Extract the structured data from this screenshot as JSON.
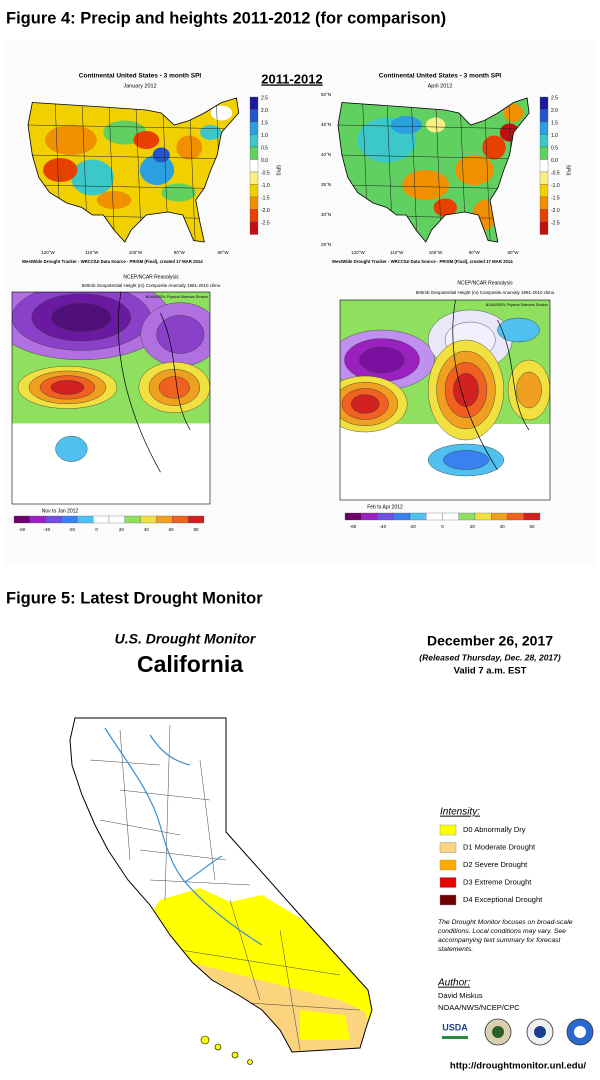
{
  "figure4": {
    "heading": "Figure 4:  Precip and heights 2011-2012 (for comparison)",
    "period_label": "2011-2012",
    "spi_maps": [
      {
        "title": "Continental United States - 3 month SPI",
        "month": "January 2012",
        "lon_labels": [
          "120°W",
          "110°W",
          "100°W",
          "90°W",
          "80°W"
        ],
        "credit": "WestWide Drought Tracker - WRCC/UI  Data Source - PRISM (Final), created 17 MAR 2014"
      },
      {
        "title": "Continental United States - 3 month SPI",
        "month": "April 2012",
        "lat_labels": [
          "50°N",
          "45°N",
          "40°N",
          "35°N",
          "30°N",
          "25°N"
        ],
        "lon_labels": [
          "120°W",
          "110°W",
          "100°W",
          "90°W",
          "80°W"
        ],
        "credit": "WestWide Drought Tracker - WRCC/UI  Data Source - PRISM (Final), created 17 MAR 2014"
      }
    ],
    "spi_scale": {
      "ticks": [
        "2.5",
        "2.0",
        "1.5",
        "1.0",
        "0.5",
        "0.0",
        "-0.5",
        "-1.0",
        "-1.5",
        "-2.0",
        "-2.5"
      ],
      "label": "SPI3"
    },
    "height_maps": [
      {
        "source": "NCEP/NCAR Reanalysis",
        "subtitle": "500mb Geopotential Height (m) Composite Anomaly 1981-2010 climo",
        "division": "NOAA/ESRL Physical Sciences Division",
        "period": "Nov to Jan 2012",
        "scale_ticks": [
          "-60",
          "-40",
          "-20",
          "0",
          "20",
          "40",
          "60",
          "80"
        ]
      },
      {
        "source": "NCEP/NCAR Reanalysis",
        "subtitle": "500mb Geopotential Height (m) Composite Anomaly 1981-2010 climo",
        "division": "NOAA/ESRL Physical Sciences Division",
        "period": "Feb to Apr 2012",
        "scale_ticks": [
          "-60",
          "-40",
          "-20",
          "0",
          "20",
          "40",
          "60"
        ]
      }
    ]
  },
  "figure5": {
    "heading": "Figure 5:  Latest Drought Monitor",
    "product": "U.S. Drought Monitor",
    "region": "California",
    "date": "December 26, 2017",
    "released": "(Released Thursday, Dec. 28, 2017)",
    "valid": "Valid 7 a.m. EST",
    "legend_title": "Intensity:",
    "legend": [
      {
        "label": "D0 Abnormally Dry",
        "color": "#ffff00"
      },
      {
        "label": "D1 Moderate Drought",
        "color": "#fcd37f"
      },
      {
        "label": "D2 Severe Drought",
        "color": "#ffaa00"
      },
      {
        "label": "D3 Extreme Drought",
        "color": "#e60000"
      },
      {
        "label": "D4 Exceptional Drought",
        "color": "#730000"
      }
    ],
    "note_lines": [
      "The Drought Monitor focuses on broad-scale",
      "conditions. Local conditions may vary. See",
      "accompanying text summary for forecast",
      "statements."
    ],
    "author_title": "Author:",
    "author": "David Miskus",
    "agency": "NOAA/NWS/NCEP/CPC",
    "logo_text": "USDA",
    "url": "http://droughtmonitor.unl.edu/"
  }
}
